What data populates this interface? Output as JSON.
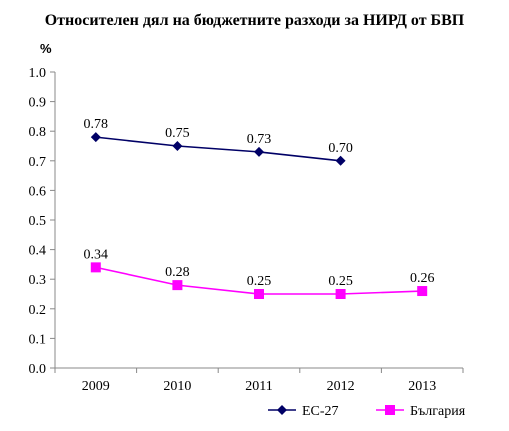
{
  "chart_data": {
    "type": "line",
    "title": "Относителен дял на бюджетните разходи за НИРД от БВП",
    "ylabel": "%",
    "xlabel": "",
    "categories": [
      "2009",
      "2010",
      "2011",
      "2012",
      "2013"
    ],
    "ylim": [
      0,
      1.0
    ],
    "yticks": [
      "0.0",
      "0.1",
      "0.2",
      "0.3",
      "0.4",
      "0.5",
      "0.6",
      "0.7",
      "0.8",
      "0.9",
      "1.0"
    ],
    "grid": false,
    "legend_position": "bottom-right",
    "series": [
      {
        "name": "ЕС-27",
        "color": "#000066",
        "marker": "diamond",
        "values": [
          0.78,
          0.75,
          0.73,
          0.7,
          null
        ],
        "labels": [
          "0.78",
          "0.75",
          "0.73",
          "0.70",
          null
        ]
      },
      {
        "name": "България",
        "color": "#ff00ff",
        "marker": "square",
        "values": [
          0.34,
          0.28,
          0.25,
          0.25,
          0.26
        ],
        "labels": [
          "0.34",
          "0.28",
          "0.25",
          "0.25",
          "0.26"
        ]
      }
    ]
  }
}
